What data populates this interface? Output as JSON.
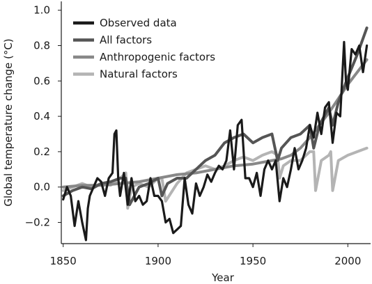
{
  "chart_data": {
    "type": "line",
    "xlabel": "Year",
    "ylabel": "Global temperature change (°C)",
    "xlim": [
      1849,
      2012
    ],
    "ylim": [
      -0.32,
      1.05
    ],
    "x_ticks": [
      1850,
      1900,
      1950,
      2000
    ],
    "y_ticks": [
      -0.2,
      0.0,
      0.2,
      0.4,
      0.6,
      0.8,
      1.0
    ],
    "y_tick_labels": [
      "−0.2",
      "0.0",
      "0.2",
      "0.4",
      "0.6",
      "0.8",
      "1.0"
    ],
    "legend_position": "top-left",
    "grid": false,
    "series": [
      {
        "name": "Observed data",
        "color": "#1a1a1a",
        "x": [
          1850,
          1852,
          1854,
          1856,
          1858,
          1860,
          1862,
          1863,
          1864,
          1866,
          1868,
          1870,
          1872,
          1874,
          1876,
          1877,
          1878,
          1879,
          1880,
          1882,
          1884,
          1886,
          1888,
          1890,
          1892,
          1894,
          1896,
          1898,
          1900,
          1902,
          1904,
          1906,
          1908,
          1910,
          1912,
          1914,
          1916,
          1918,
          1920,
          1922,
          1924,
          1926,
          1928,
          1930,
          1932,
          1934,
          1936,
          1938,
          1940,
          1942,
          1944,
          1946,
          1948,
          1950,
          1952,
          1954,
          1956,
          1958,
          1960,
          1962,
          1964,
          1966,
          1968,
          1970,
          1972,
          1974,
          1976,
          1978,
          1980,
          1982,
          1984,
          1986,
          1988,
          1990,
          1992,
          1994,
          1996,
          1998,
          1999,
          2000,
          2002,
          2004,
          2006,
          2008,
          2010
        ],
        "y": [
          -0.07,
          0.0,
          -0.05,
          -0.22,
          -0.08,
          -0.2,
          -0.3,
          -0.12,
          -0.05,
          0.0,
          0.05,
          0.03,
          -0.05,
          0.05,
          0.08,
          0.3,
          0.32,
          0.05,
          -0.05,
          0.08,
          -0.1,
          0.05,
          -0.08,
          -0.05,
          -0.1,
          -0.08,
          0.05,
          -0.05,
          -0.05,
          -0.08,
          -0.2,
          -0.18,
          -0.26,
          -0.24,
          -0.22,
          0.05,
          -0.1,
          -0.15,
          0.02,
          -0.05,
          0.0,
          0.07,
          0.03,
          0.08,
          0.12,
          0.1,
          0.15,
          0.32,
          0.1,
          0.35,
          0.38,
          0.05,
          0.05,
          0.0,
          0.08,
          -0.05,
          0.1,
          0.15,
          0.1,
          0.15,
          -0.08,
          0.05,
          0.0,
          0.1,
          0.22,
          0.1,
          0.15,
          0.22,
          0.35,
          0.28,
          0.42,
          0.3,
          0.45,
          0.48,
          0.25,
          0.42,
          0.4,
          0.82,
          0.6,
          0.55,
          0.78,
          0.75,
          0.8,
          0.65,
          0.8
        ]
      },
      {
        "name": "All factors",
        "color": "#555555",
        "x": [
          1850,
          1855,
          1860,
          1865,
          1870,
          1875,
          1880,
          1883,
          1885,
          1890,
          1895,
          1900,
          1902,
          1905,
          1910,
          1915,
          1920,
          1925,
          1930,
          1935,
          1940,
          1945,
          1950,
          1955,
          1960,
          1963,
          1965,
          1970,
          1975,
          1980,
          1982,
          1985,
          1990,
          1992,
          1995,
          2000,
          2005,
          2010
        ],
        "y": [
          -0.05,
          -0.02,
          0.0,
          -0.01,
          0.02,
          0.03,
          0.05,
          0.05,
          -0.1,
          0.0,
          0.02,
          0.05,
          -0.05,
          0.02,
          0.05,
          0.05,
          0.1,
          0.15,
          0.18,
          0.25,
          0.28,
          0.3,
          0.25,
          0.28,
          0.3,
          0.15,
          0.22,
          0.28,
          0.3,
          0.35,
          0.22,
          0.35,
          0.45,
          0.35,
          0.48,
          0.62,
          0.75,
          0.9
        ]
      },
      {
        "name": "Anthropogenic factors",
        "color": "#888888",
        "x": [
          1850,
          1860,
          1870,
          1880,
          1890,
          1900,
          1910,
          1920,
          1930,
          1940,
          1950,
          1960,
          1965,
          1970,
          1975,
          1980,
          1985,
          1990,
          1995,
          2000,
          2005,
          2010
        ],
        "y": [
          0.0,
          0.01,
          0.01,
          0.02,
          0.03,
          0.05,
          0.07,
          0.08,
          0.1,
          0.12,
          0.13,
          0.15,
          0.16,
          0.18,
          0.22,
          0.28,
          0.35,
          0.42,
          0.5,
          0.58,
          0.65,
          0.72
        ]
      },
      {
        "name": "Natural factors",
        "color": "#b4b4b4",
        "x": [
          1850,
          1855,
          1860,
          1865,
          1870,
          1875,
          1880,
          1883,
          1884,
          1886,
          1890,
          1895,
          1900,
          1902,
          1904,
          1910,
          1915,
          1920,
          1925,
          1930,
          1935,
          1940,
          1945,
          1950,
          1955,
          1960,
          1963,
          1964,
          1966,
          1970,
          1975,
          1980,
          1982,
          1983,
          1986,
          1990,
          1991,
          1992,
          1995,
          2000,
          2005,
          2010
        ],
        "y": [
          -0.02,
          0.0,
          0.02,
          0.0,
          0.02,
          0.01,
          0.05,
          0.08,
          -0.12,
          0.0,
          0.02,
          0.0,
          0.05,
          0.05,
          -0.08,
          0.02,
          0.08,
          0.1,
          0.12,
          0.1,
          0.12,
          0.15,
          0.17,
          0.15,
          0.18,
          0.2,
          0.18,
          0.05,
          0.12,
          0.15,
          0.15,
          0.2,
          0.2,
          -0.02,
          0.15,
          0.18,
          0.2,
          -0.02,
          0.15,
          0.18,
          0.2,
          0.22
        ]
      }
    ]
  }
}
